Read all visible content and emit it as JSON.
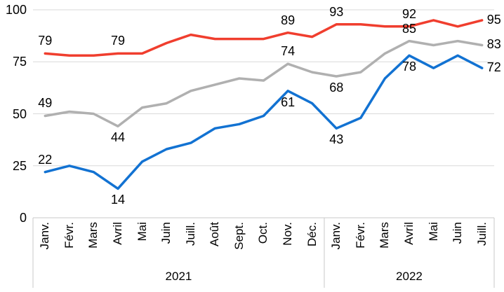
{
  "chart_data": {
    "type": "line",
    "title": "",
    "xlabel": "",
    "ylabel": "",
    "ylim": [
      0,
      100
    ],
    "y_ticks": [
      0,
      25,
      50,
      75,
      100
    ],
    "grid": true,
    "legend": "none",
    "x_groups": [
      {
        "year": "2021",
        "months": [
          "Janv.",
          "Févr.",
          "Mars",
          "Avril",
          "Mai",
          "Juin",
          "Juill.",
          "Août",
          "Sept.",
          "Oct.",
          "Nov.",
          "Déc."
        ]
      },
      {
        "year": "2022",
        "months": [
          "Janv.",
          "Févr.",
          "Mars",
          "Avril",
          "Mai",
          "Juin",
          "Juill."
        ]
      }
    ],
    "categories": [
      "Janv.",
      "Févr.",
      "Mars",
      "Avril",
      "Mai",
      "Juin",
      "Juill.",
      "Août",
      "Sept.",
      "Oct.",
      "Nov.",
      "Déc.",
      "Janv.",
      "Févr.",
      "Mars",
      "Avril",
      "Mai",
      "Juin",
      "Juill."
    ],
    "series": [
      {
        "id": "red",
        "color": "#F03E2E",
        "values": [
          79,
          78,
          78,
          79,
          79,
          84,
          88,
          86,
          86,
          86,
          89,
          87,
          93,
          93,
          92,
          92,
          95,
          92,
          95
        ],
        "point_labels": [
          {
            "index": 0,
            "text": "79",
            "position": "above"
          },
          {
            "index": 3,
            "text": "79",
            "position": "above"
          },
          {
            "index": 10,
            "text": "89",
            "position": "above"
          },
          {
            "index": 12,
            "text": "93",
            "position": "above"
          },
          {
            "index": 15,
            "text": "92",
            "position": "above"
          },
          {
            "index": 18,
            "text": "95",
            "position": "right"
          }
        ]
      },
      {
        "id": "gray",
        "color": "#B0B0B0",
        "values": [
          49,
          51,
          50,
          44,
          53,
          55,
          61,
          64,
          67,
          66,
          74,
          70,
          68,
          70,
          79,
          85,
          83,
          85,
          83
        ],
        "point_labels": [
          {
            "index": 0,
            "text": "49",
            "position": "above"
          },
          {
            "index": 3,
            "text": "44",
            "position": "below"
          },
          {
            "index": 10,
            "text": "74",
            "position": "above"
          },
          {
            "index": 12,
            "text": "68",
            "position": "below"
          },
          {
            "index": 15,
            "text": "85",
            "position": "above"
          },
          {
            "index": 18,
            "text": "83",
            "position": "right"
          }
        ]
      },
      {
        "id": "blue",
        "color": "#1272D2",
        "values": [
          22,
          25,
          22,
          14,
          27,
          33,
          36,
          43,
          45,
          49,
          61,
          55,
          43,
          48,
          67,
          78,
          72,
          78,
          72
        ],
        "point_labels": [
          {
            "index": 0,
            "text": "22",
            "position": "above"
          },
          {
            "index": 3,
            "text": "14",
            "position": "below"
          },
          {
            "index": 10,
            "text": "61",
            "position": "below"
          },
          {
            "index": 12,
            "text": "43",
            "position": "below"
          },
          {
            "index": 15,
            "text": "78",
            "position": "below"
          },
          {
            "index": 18,
            "text": "72",
            "position": "right"
          }
        ]
      }
    ],
    "colors": {
      "gridline": "#D9D9D9",
      "axis_box": "#C9C9C9",
      "text": "#000000"
    }
  }
}
